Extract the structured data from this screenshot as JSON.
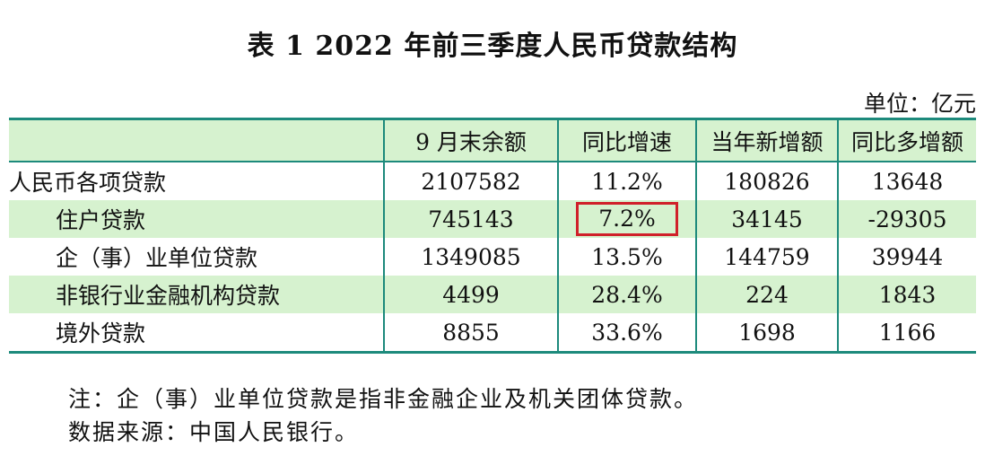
{
  "title": "表 1    2022 年前三季度人民币贷款结构",
  "unit": "单位：亿元",
  "table": {
    "headers": [
      "",
      "9 月末余额",
      "同比增速",
      "当年新增额",
      "同比多增额"
    ],
    "rows": [
      {
        "label": "人民币各项贷款",
        "balance": "2107582",
        "growth": "11.2%",
        "new": "180826",
        "more": "13648"
      },
      {
        "label": "住户贷款",
        "balance": "745143",
        "growth": "7.2%",
        "new": "34145",
        "more": "-29305"
      },
      {
        "label": "企（事）业单位贷款",
        "balance": "1349085",
        "growth": "13.5%",
        "new": "144759",
        "more": "39944"
      },
      {
        "label": "非银行业金融机构贷款",
        "balance": "4499",
        "growth": "28.4%",
        "new": "224",
        "more": "1843"
      },
      {
        "label": "境外贷款",
        "balance": "8855",
        "growth": "33.6%",
        "new": "1698",
        "more": "1166"
      }
    ]
  },
  "notes": {
    "note": "注：企（事）业单位贷款是指非金融企业及机关团体贷款。",
    "source": "数据来源：中国人民银行。"
  },
  "colors": {
    "border": "#1d8a7c",
    "band": "#d6f2cf",
    "highlight": "#d0202a"
  }
}
